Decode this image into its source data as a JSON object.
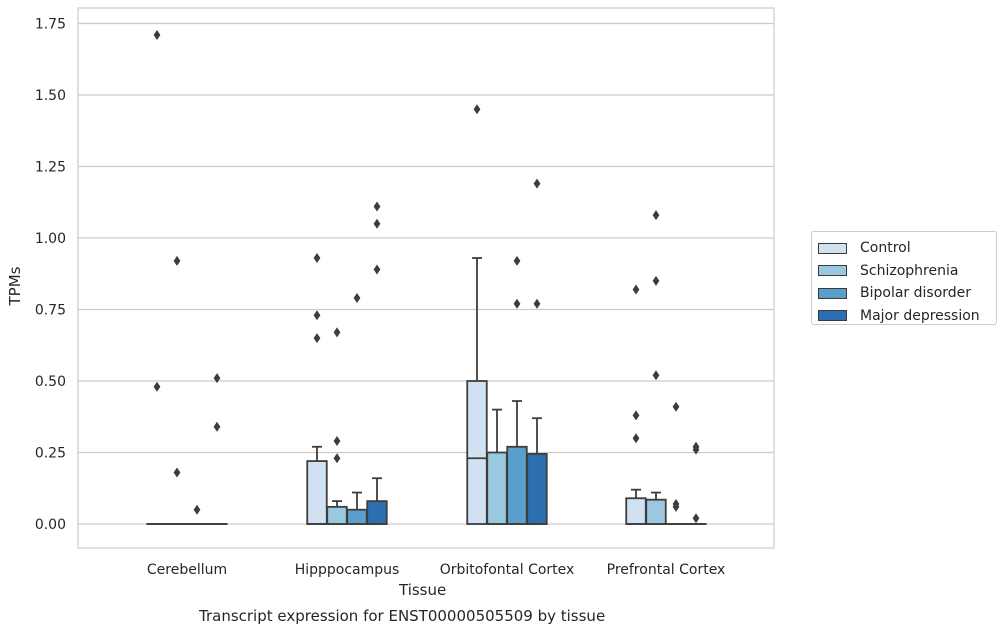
{
  "chart_data": {
    "type": "box",
    "title": "",
    "xlabel": "Tissue",
    "ylabel": "TPMs",
    "caption": "Transcript expression for ENST00000505509 by tissue",
    "ylim": [
      -0.08,
      1.8
    ],
    "yticks": [
      "0.00",
      "0.25",
      "0.50",
      "0.75",
      "1.00",
      "1.25",
      "1.50",
      "1.75"
    ],
    "ytick_values": [
      0,
      0.25,
      0.5,
      0.75,
      1.0,
      1.25,
      1.5,
      1.75
    ],
    "grid": "horizontal",
    "legend_position": "right",
    "categories": [
      "Cerebellum",
      "Hipppocampus",
      "Orbitofontal Cortex",
      "Prefrontal Cortex"
    ],
    "series": [
      {
        "name": "Control",
        "color": "#d0e1f2",
        "boxes": [
          {
            "q1": 0,
            "median": 0,
            "q3": 0,
            "whislo": 0,
            "whishi": 0,
            "fliers": [
              1.71,
              0.48
            ]
          },
          {
            "q1": 0,
            "median": 0,
            "q3": 0.22,
            "whislo": 0,
            "whishi": 0.27,
            "fliers": [
              0.93,
              0.73,
              0.65
            ]
          },
          {
            "q1": 0,
            "median": 0.23,
            "q3": 0.5,
            "whislo": 0,
            "whishi": 0.93,
            "fliers": [
              1.45
            ]
          },
          {
            "q1": 0,
            "median": 0,
            "q3": 0.09,
            "whislo": 0,
            "whishi": 0.12,
            "fliers": [
              0.82,
              0.38,
              0.3
            ]
          }
        ]
      },
      {
        "name": "Schizophrenia",
        "color": "#9ac8e0",
        "boxes": [
          {
            "q1": 0,
            "median": 0,
            "q3": 0,
            "whislo": 0,
            "whishi": 0,
            "fliers": [
              0.92,
              0.18
            ]
          },
          {
            "q1": 0,
            "median": 0,
            "q3": 0.06,
            "whislo": 0,
            "whishi": 0.08,
            "fliers": [
              0.67,
              0.29,
              0.23
            ]
          },
          {
            "q1": 0,
            "median": 0,
            "q3": 0.25,
            "whislo": 0,
            "whishi": 0.4,
            "fliers": []
          },
          {
            "q1": 0,
            "median": 0,
            "q3": 0.085,
            "whislo": 0,
            "whishi": 0.11,
            "fliers": [
              1.08,
              0.85,
              0.52
            ]
          }
        ]
      },
      {
        "name": "Bipolar disorder",
        "color": "#5a9fcc",
        "boxes": [
          {
            "q1": 0,
            "median": 0,
            "q3": 0,
            "whislo": 0,
            "whishi": 0,
            "fliers": [
              0.05
            ]
          },
          {
            "q1": 0,
            "median": 0,
            "q3": 0.05,
            "whislo": 0,
            "whishi": 0.11,
            "fliers": [
              0.79
            ]
          },
          {
            "q1": 0,
            "median": 0,
            "q3": 0.27,
            "whislo": 0,
            "whishi": 0.43,
            "fliers": [
              0.92,
              0.77
            ]
          },
          {
            "q1": 0,
            "median": 0,
            "q3": 0,
            "whislo": 0,
            "whishi": 0,
            "fliers": [
              0.41,
              0.07,
              0.06
            ]
          }
        ]
      },
      {
        "name": "Major depression",
        "color": "#2c6eaf",
        "boxes": [
          {
            "q1": 0,
            "median": 0,
            "q3": 0,
            "whislo": 0,
            "whishi": 0,
            "fliers": [
              0.51,
              0.34
            ]
          },
          {
            "q1": 0,
            "median": 0,
            "q3": 0.08,
            "whislo": 0,
            "whishi": 0.16,
            "fliers": [
              1.11,
              1.05,
              0.89
            ]
          },
          {
            "q1": 0,
            "median": 0,
            "q3": 0.245,
            "whislo": 0,
            "whishi": 0.37,
            "fliers": [
              1.19,
              0.77
            ]
          },
          {
            "q1": 0,
            "median": 0,
            "q3": 0,
            "whislo": 0,
            "whishi": 0,
            "fliers": [
              0.27,
              0.26,
              0.02
            ]
          }
        ]
      }
    ]
  }
}
